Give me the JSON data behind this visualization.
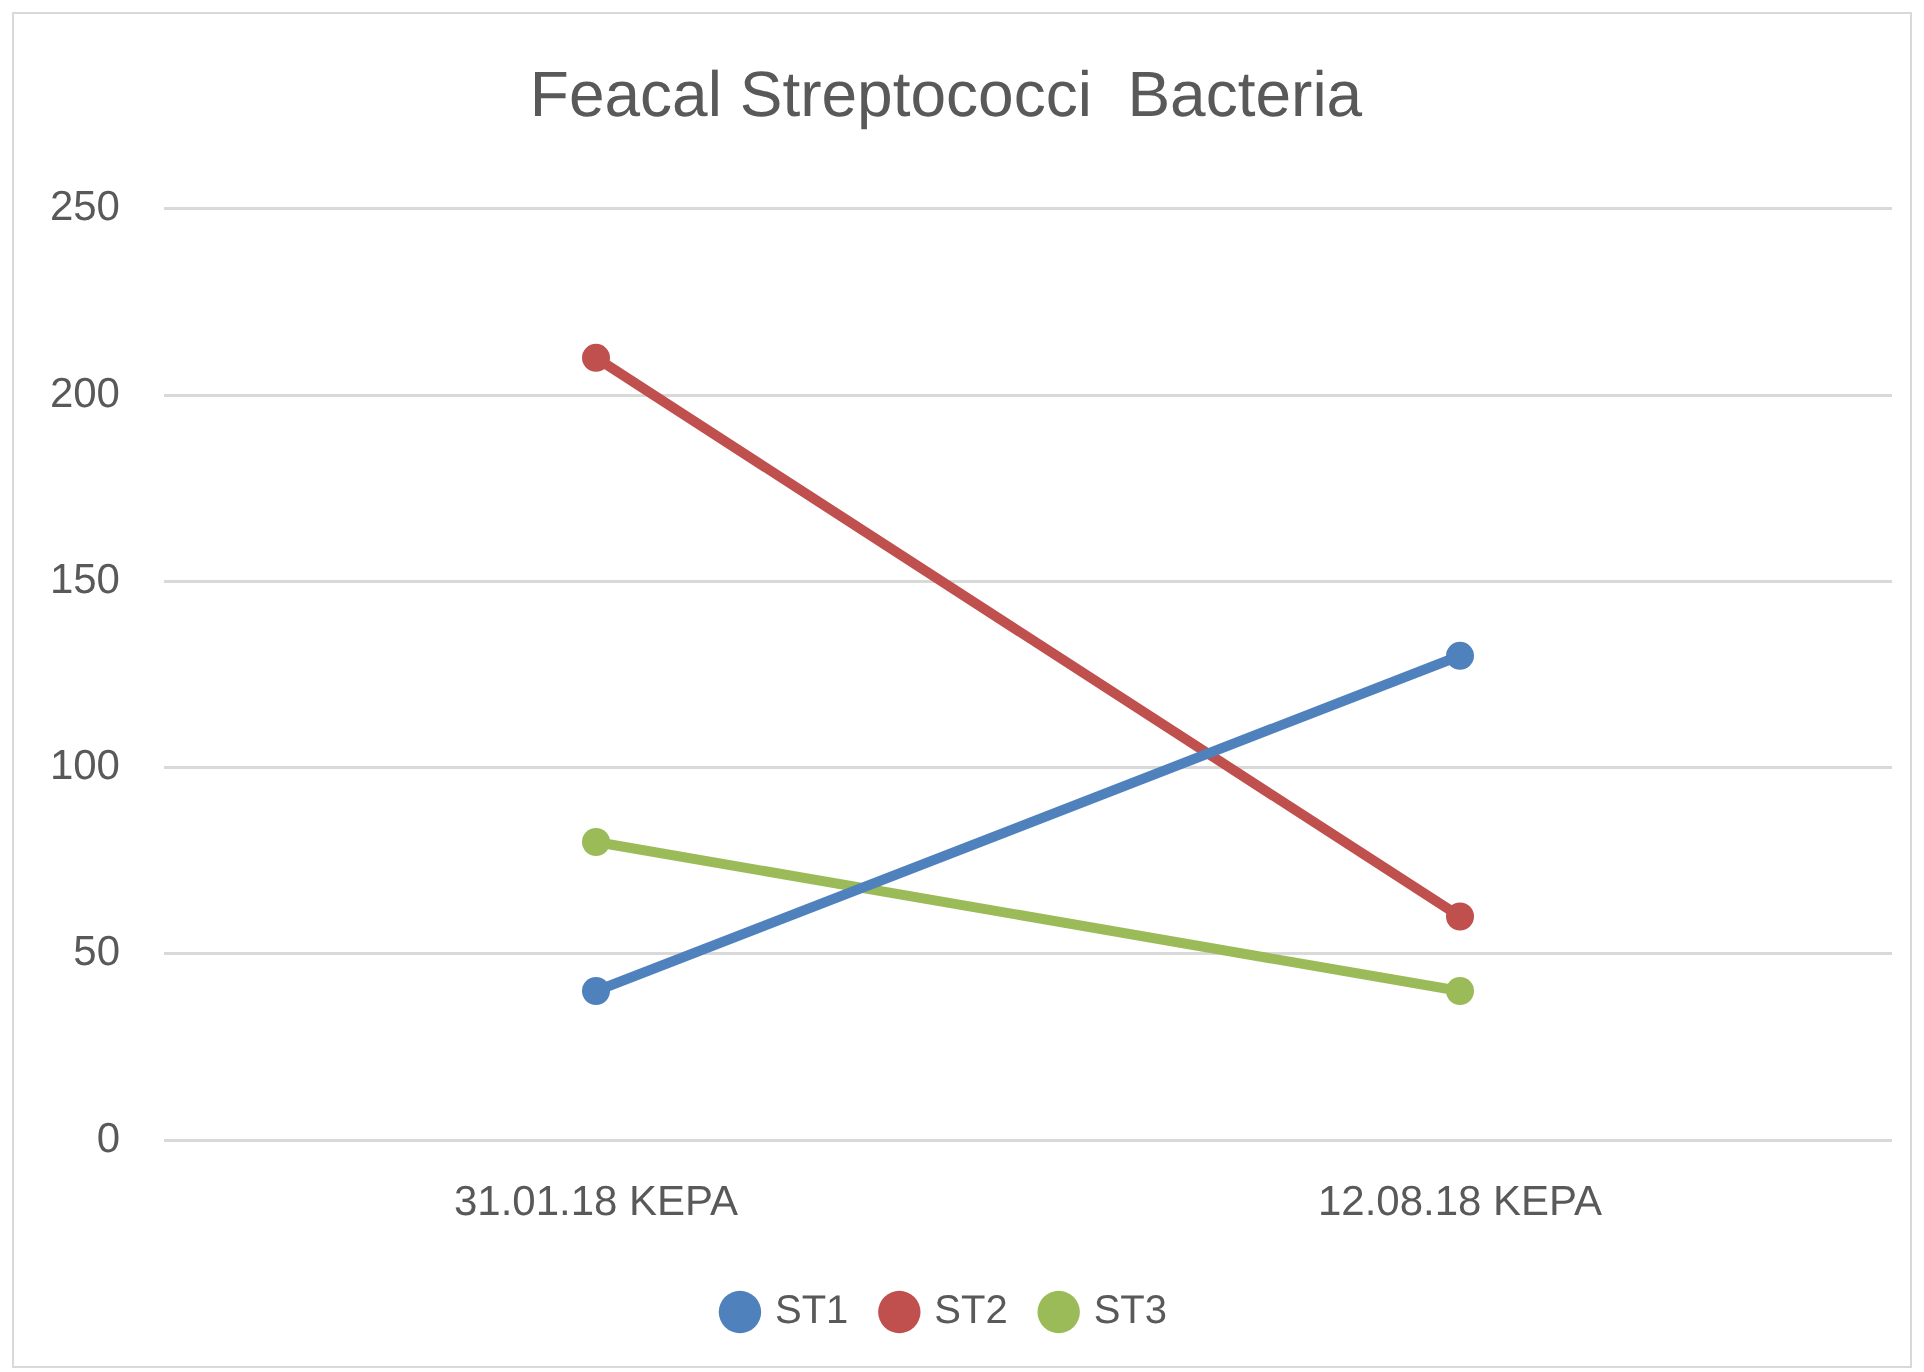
{
  "chart_data": {
    "type": "line",
    "title": "Feacal Streptococci  Bacteria",
    "categories": [
      "31.01.18 KEPA",
      "12.08.18 KEPA"
    ],
    "series": [
      {
        "name": "ST1",
        "color": "#4f81bd",
        "values": [
          40,
          130
        ]
      },
      {
        "name": "ST2",
        "color": "#c0504d",
        "values": [
          210,
          60
        ]
      },
      {
        "name": "ST3",
        "color": "#9bbb59",
        "values": [
          80,
          40
        ]
      }
    ],
    "ylim": [
      0,
      250
    ],
    "yticks": [
      0,
      50,
      100,
      150,
      200,
      250
    ],
    "grid": "y",
    "legend": "bottom",
    "marker": "circle",
    "line_style": "solid"
  }
}
